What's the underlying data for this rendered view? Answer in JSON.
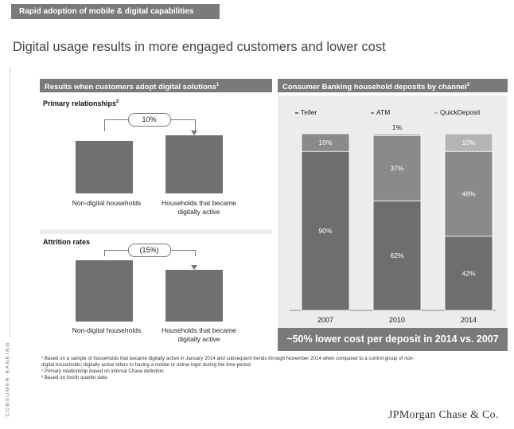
{
  "header": {
    "tag": "Rapid adoption of mobile & digital capabilities"
  },
  "title": "Digital usage results in more engaged customers and lower cost",
  "side_label": "CONSUMER BANKING",
  "left_panel": {
    "title": "Results when customers adopt digital solutions",
    "title_sup": "1"
  },
  "right_panel": {
    "title": "Consumer Banking household deposits by channel",
    "title_sup": "3"
  },
  "colors": {
    "bar": "#707070",
    "teller": "#6e6e6e",
    "atm": "#8a8a8a",
    "quickdeposit": "#b4b4b4",
    "panel_header": "#7a7a7a"
  },
  "chart_data": [
    {
      "type": "bar",
      "title": "Primary relationships",
      "title_sup": "2",
      "categories": [
        "Non-digital households",
        "Households that became digitally active"
      ],
      "values": [
        100,
        110
      ],
      "annotation": "10%"
    },
    {
      "type": "bar",
      "title": "Attrition rates",
      "categories": [
        "Non-digital households",
        "Households that became digitally active"
      ],
      "values": [
        100,
        85
      ],
      "annotation": "(15%)"
    },
    {
      "type": "bar",
      "stacked": true,
      "title": "Consumer Banking household deposits by channel",
      "categories": [
        "2007",
        "2010",
        "2014"
      ],
      "series": [
        {
          "name": "Teller",
          "values": [
            90,
            62,
            42
          ],
          "labels": [
            "90%",
            "62%",
            "42%"
          ]
        },
        {
          "name": "ATM",
          "values": [
            10,
            37,
            48
          ],
          "labels": [
            "10%",
            "37%",
            "48%"
          ]
        },
        {
          "name": "QuickDeposit",
          "values": [
            0,
            1,
            10
          ],
          "labels": [
            "",
            "1%",
            "10%"
          ]
        }
      ],
      "ylim": [
        0,
        100
      ]
    }
  ],
  "callout": "~50% lower cost per deposit in 2014 vs. 2007",
  "footnotes": [
    "¹ Based on a sample of households that became digitally active in January 2014 and subsequent trends through November 2014 when compared to a control group of non-",
    "  digital households; digitally active refers to having a mobile or online login during the time period",
    "² Primary relationship based on internal Chase definition",
    "³ Based on fourth quarter data"
  ],
  "logo": "JPMorgan Chase & Co."
}
